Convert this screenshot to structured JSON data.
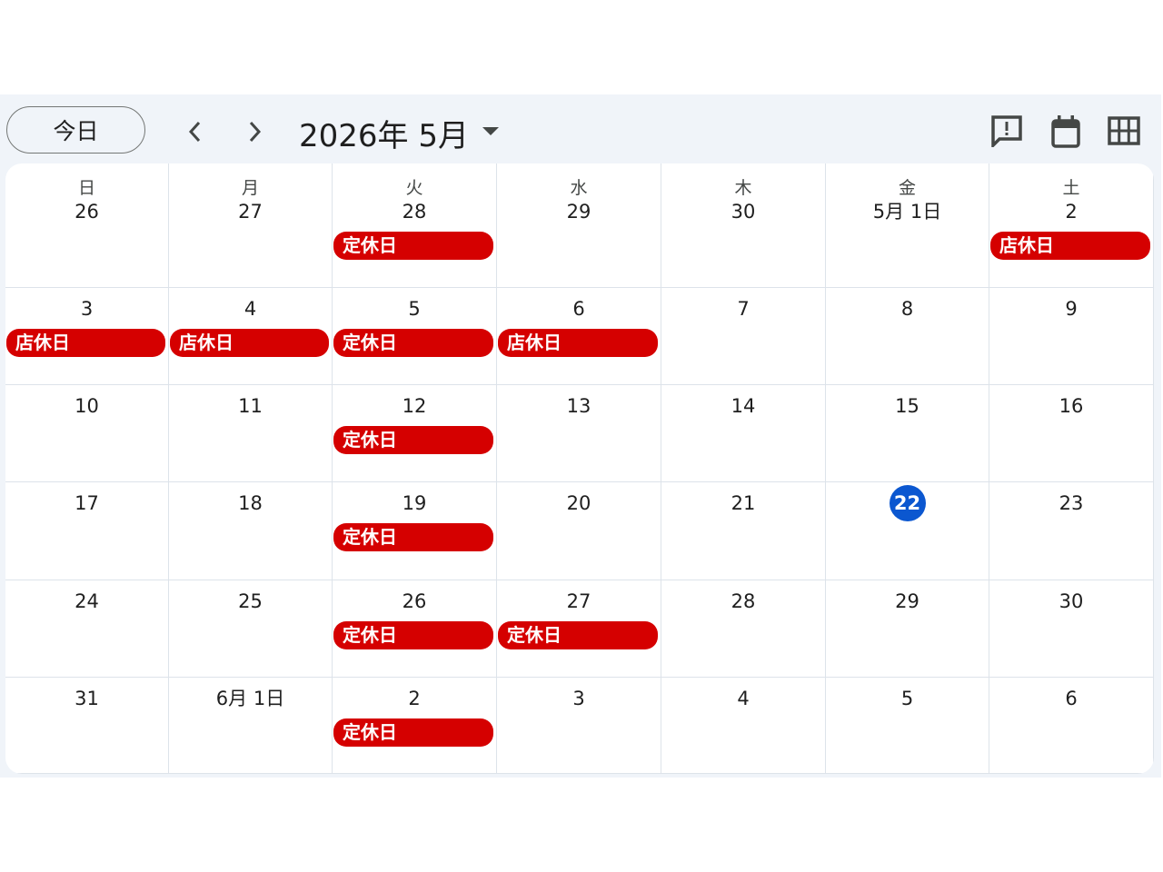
{
  "toolbar": {
    "today_button": "今日",
    "title": "2026年 5月"
  },
  "weekdays": [
    "日",
    "月",
    "火",
    "水",
    "木",
    "金",
    "土"
  ],
  "weeks": [
    [
      {
        "label": "26",
        "events": []
      },
      {
        "label": "27",
        "events": []
      },
      {
        "label": "28",
        "events": [
          "定休日"
        ]
      },
      {
        "label": "29",
        "events": []
      },
      {
        "label": "30",
        "events": []
      },
      {
        "label": "5月 1日",
        "events": []
      },
      {
        "label": "2",
        "events": [
          "店休日"
        ]
      }
    ],
    [
      {
        "label": "3",
        "events": [
          "店休日"
        ]
      },
      {
        "label": "4",
        "events": [
          "店休日"
        ]
      },
      {
        "label": "5",
        "events": [
          "定休日"
        ]
      },
      {
        "label": "6",
        "events": [
          "店休日"
        ]
      },
      {
        "label": "7",
        "events": []
      },
      {
        "label": "8",
        "events": []
      },
      {
        "label": "9",
        "events": []
      }
    ],
    [
      {
        "label": "10",
        "events": []
      },
      {
        "label": "11",
        "events": []
      },
      {
        "label": "12",
        "events": [
          "定休日"
        ]
      },
      {
        "label": "13",
        "events": []
      },
      {
        "label": "14",
        "events": []
      },
      {
        "label": "15",
        "events": []
      },
      {
        "label": "16",
        "events": []
      }
    ],
    [
      {
        "label": "17",
        "events": []
      },
      {
        "label": "18",
        "events": []
      },
      {
        "label": "19",
        "events": [
          "定休日"
        ]
      },
      {
        "label": "20",
        "events": []
      },
      {
        "label": "21",
        "events": []
      },
      {
        "label": "22",
        "events": [],
        "highlighted": true
      },
      {
        "label": "23",
        "events": []
      }
    ],
    [
      {
        "label": "24",
        "events": []
      },
      {
        "label": "25",
        "events": []
      },
      {
        "label": "26",
        "events": [
          "定休日"
        ]
      },
      {
        "label": "27",
        "events": [
          "定休日"
        ]
      },
      {
        "label": "28",
        "events": []
      },
      {
        "label": "29",
        "events": []
      },
      {
        "label": "30",
        "events": []
      }
    ],
    [
      {
        "label": "31",
        "events": []
      },
      {
        "label": "6月 1日",
        "events": []
      },
      {
        "label": "2",
        "events": [
          "定休日"
        ]
      },
      {
        "label": "3",
        "events": []
      },
      {
        "label": "4",
        "events": []
      },
      {
        "label": "5",
        "events": []
      },
      {
        "label": "6",
        "events": []
      }
    ]
  ]
}
